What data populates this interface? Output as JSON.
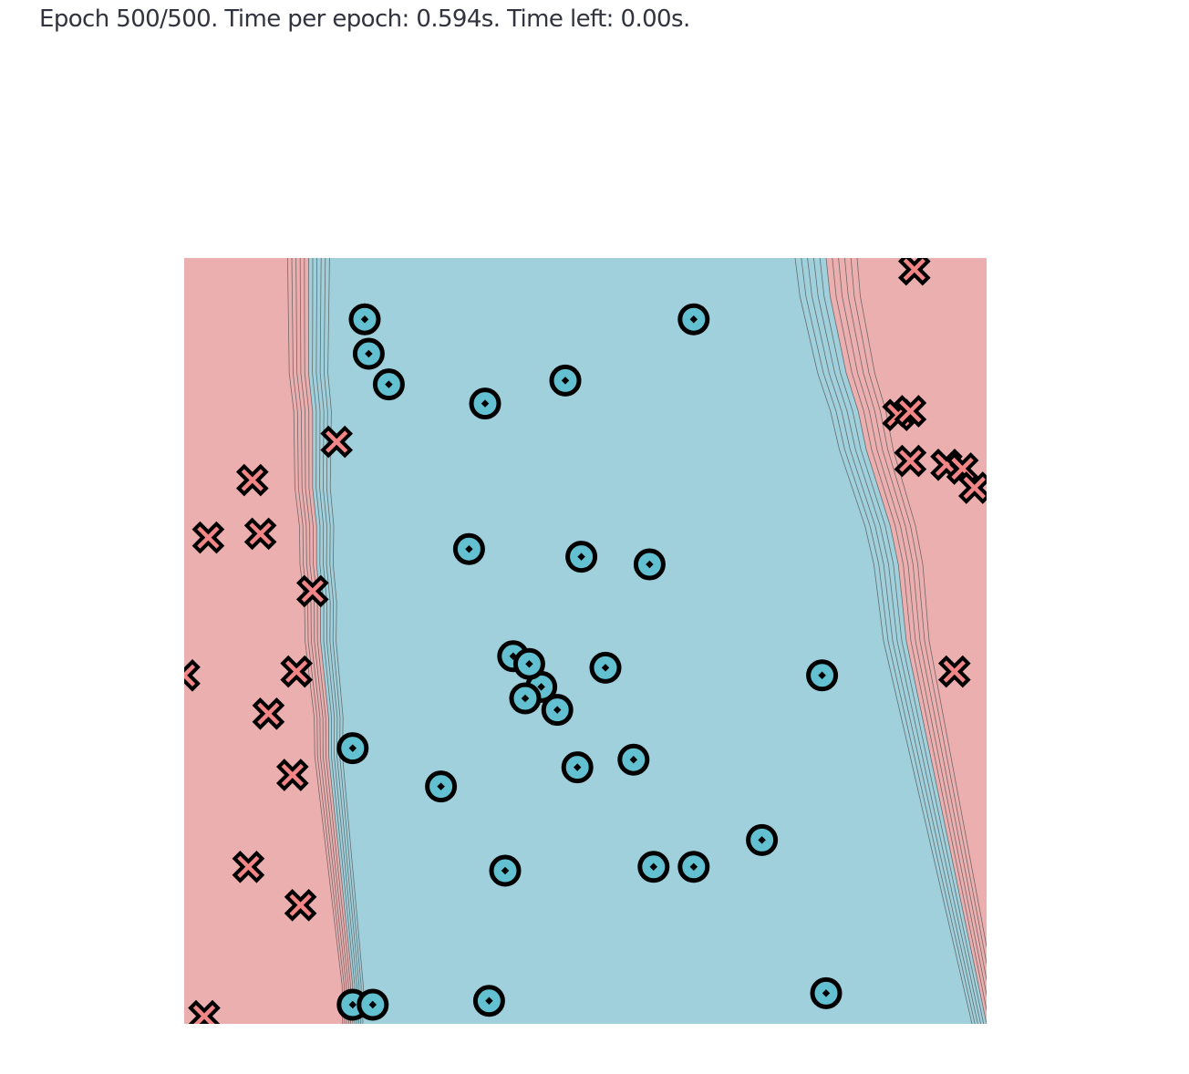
{
  "status_text": "Epoch 500/500. Time per epoch: 0.594s. Time left: 0.00s.",
  "colors": {
    "class_negative_region": "#ecafb0",
    "class_positive_region": "#a0d0dc",
    "cross_marker": "#f28585",
    "circle_marker": "#62c0d1",
    "contour_line": "#555555",
    "marker_outline": "#000000"
  },
  "chart_data": {
    "type": "scatter",
    "title": "",
    "xlabel": "",
    "ylabel": "",
    "xlim": [
      -1,
      1
    ],
    "ylim": [
      -1,
      1
    ],
    "grid": false,
    "decision_boundary": {
      "left_boundary": [
        [
          -1.0,
          -0.58
        ],
        [
          -0.9,
          -0.58
        ],
        [
          -0.8,
          -0.59
        ],
        [
          -0.7,
          -0.6
        ],
        [
          -0.6,
          -0.61
        ],
        [
          -0.5,
          -0.62
        ],
        [
          -0.4,
          -0.63
        ],
        [
          -0.3,
          -0.64
        ],
        [
          -0.2,
          -0.64
        ],
        [
          -0.1,
          -0.65
        ],
        [
          0.0,
          -0.66
        ],
        [
          0.1,
          -0.66
        ],
        [
          0.2,
          -0.67
        ],
        [
          0.3,
          -0.67
        ],
        [
          0.4,
          -0.68
        ],
        [
          0.5,
          -0.68
        ],
        [
          0.6,
          -0.68
        ],
        [
          0.7,
          -0.69
        ],
        [
          0.8,
          -0.69
        ],
        [
          0.9,
          -0.69
        ],
        [
          1.0,
          -0.69
        ]
      ],
      "right_boundary": [
        [
          -1.0,
          1.0
        ],
        [
          -0.9,
          0.98
        ],
        [
          -0.8,
          0.96
        ],
        [
          -0.7,
          0.94
        ],
        [
          -0.6,
          0.92
        ],
        [
          -0.5,
          0.9
        ],
        [
          -0.4,
          0.88
        ],
        [
          -0.3,
          0.86
        ],
        [
          -0.2,
          0.84
        ],
        [
          -0.1,
          0.82
        ],
        [
          0.0,
          0.8
        ],
        [
          0.1,
          0.79
        ],
        [
          0.2,
          0.78
        ],
        [
          0.3,
          0.76
        ],
        [
          0.4,
          0.73
        ],
        [
          0.5,
          0.7
        ],
        [
          0.6,
          0.68
        ],
        [
          0.7,
          0.65
        ],
        [
          0.8,
          0.63
        ],
        [
          0.9,
          0.61
        ],
        [
          1.0,
          0.6
        ]
      ]
    },
    "series": [
      {
        "marker": "cross",
        "points": [
          [
            -0.62,
            0.52
          ],
          [
            -0.83,
            0.42
          ],
          [
            -0.94,
            0.27
          ],
          [
            -0.81,
            0.28
          ],
          [
            -0.68,
            0.13
          ],
          [
            -1.0,
            -0.09
          ],
          [
            -0.72,
            -0.08
          ],
          [
            -0.79,
            -0.19
          ],
          [
            -0.73,
            -0.35
          ],
          [
            -0.84,
            -0.59
          ],
          [
            -0.71,
            -0.69
          ],
          [
            -0.95,
            -0.98
          ],
          [
            0.82,
            0.97
          ],
          [
            0.78,
            0.59
          ],
          [
            0.81,
            0.6
          ],
          [
            0.81,
            0.47
          ],
          [
            0.9,
            0.46
          ],
          [
            0.94,
            0.45
          ],
          [
            0.97,
            0.4
          ],
          [
            0.92,
            -0.08
          ]
        ]
      },
      {
        "marker": "circle",
        "points": [
          [
            -0.55,
            0.84
          ],
          [
            -0.54,
            0.75
          ],
          [
            -0.49,
            0.67
          ],
          [
            -0.25,
            0.62
          ],
          [
            -0.05,
            0.68
          ],
          [
            0.27,
            0.84
          ],
          [
            -0.29,
            0.24
          ],
          [
            -0.01,
            0.22
          ],
          [
            0.16,
            0.2
          ],
          [
            -0.11,
            -0.12
          ],
          [
            -0.18,
            -0.04
          ],
          [
            -0.14,
            -0.06
          ],
          [
            0.05,
            -0.07
          ],
          [
            -0.15,
            -0.15
          ],
          [
            -0.07,
            -0.18
          ],
          [
            0.59,
            -0.09
          ],
          [
            -0.58,
            -0.28
          ],
          [
            -0.36,
            -0.38
          ],
          [
            -0.02,
            -0.33
          ],
          [
            0.12,
            -0.31
          ],
          [
            -0.2,
            -0.6
          ],
          [
            0.17,
            -0.59
          ],
          [
            0.27,
            -0.59
          ],
          [
            0.44,
            -0.52
          ],
          [
            -0.58,
            -0.95
          ],
          [
            -0.53,
            -0.95
          ],
          [
            -0.24,
            -0.94
          ],
          [
            0.6,
            -0.92
          ]
        ]
      }
    ]
  }
}
